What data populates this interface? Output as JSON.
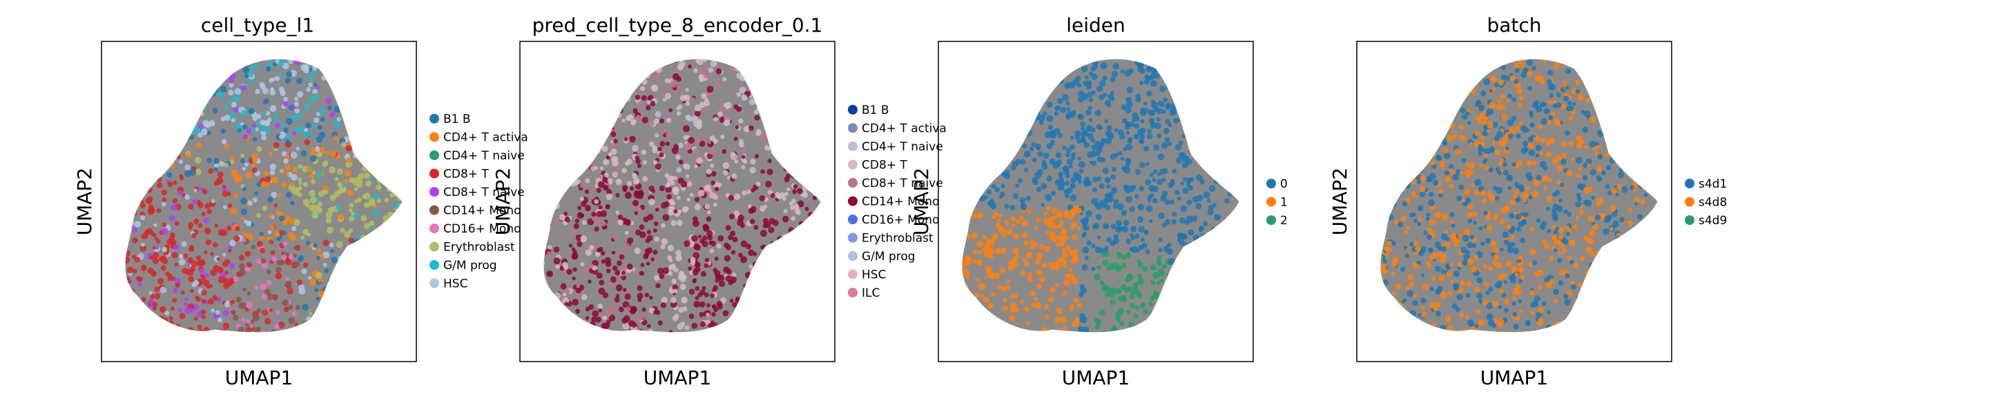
{
  "chart_data": [
    {
      "type": "scatter",
      "title": "cell_type_l1",
      "xlabel": "UMAP1",
      "ylabel": "UMAP2",
      "legend": [
        {
          "label": "B1 B",
          "color": "#1f77b4"
        },
        {
          "label": "CD4+ T activa",
          "color": "#ff7f0e"
        },
        {
          "label": "CD4+ T naive",
          "color": "#279e68"
        },
        {
          "label": "CD8+ T",
          "color": "#d62728"
        },
        {
          "label": "CD8+ T naive",
          "color": "#aa40fc"
        },
        {
          "label": "CD14+ Mono",
          "color": "#8c564b"
        },
        {
          "label": "CD16+ Mono",
          "color": "#e377c2"
        },
        {
          "label": "Erythroblast",
          "color": "#b5bd61"
        },
        {
          "label": "G/M prog",
          "color": "#17becf"
        },
        {
          "label": "HSC",
          "color": "#aec7e8"
        }
      ],
      "legend_placement": "right, outside"
    },
    {
      "type": "scatter",
      "title": "pred_cell_type_8_encoder_0.1",
      "xlabel": "UMAP1",
      "ylabel": "UMAP2",
      "legend": [
        {
          "label": "B1 B",
          "color": "#023fa5"
        },
        {
          "label": "CD4+ T activa",
          "color": "#7d87b9"
        },
        {
          "label": "CD4+ T naive",
          "color": "#bec1d4"
        },
        {
          "label": "CD8+ T",
          "color": "#d6bcc0"
        },
        {
          "label": "CD8+ T naive",
          "color": "#bb7784"
        },
        {
          "label": "CD14+ Mono",
          "color": "#8e063b"
        },
        {
          "label": "CD16+ Mono",
          "color": "#4a6fe3"
        },
        {
          "label": "Erythroblast",
          "color": "#8595e1"
        },
        {
          "label": "G/M prog",
          "color": "#b5bbe3"
        },
        {
          "label": "HSC",
          "color": "#e6afb9"
        },
        {
          "label": "ILC",
          "color": "#e07b91"
        }
      ],
      "legend_placement": "right, outside"
    },
    {
      "type": "scatter",
      "title": "leiden",
      "xlabel": "UMAP1",
      "ylabel": "UMAP2",
      "legend": [
        {
          "label": "0",
          "color": "#1f77b4"
        },
        {
          "label": "1",
          "color": "#ff7f0e"
        },
        {
          "label": "2",
          "color": "#279e68"
        }
      ],
      "legend_placement": "right, outside"
    },
    {
      "type": "scatter",
      "title": "batch",
      "xlabel": "UMAP1",
      "ylabel": "UMAP2",
      "legend": [
        {
          "label": "s4d1",
          "color": "#1f77b4"
        },
        {
          "label": "s4d8",
          "color": "#ff7f0e"
        },
        {
          "label": "s4d9",
          "color": "#279e68"
        }
      ],
      "legend_placement": "right, outside"
    }
  ]
}
